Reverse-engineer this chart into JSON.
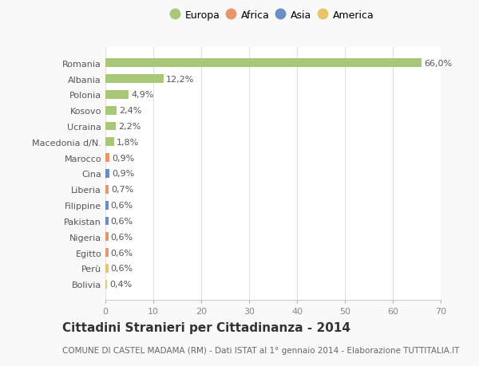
{
  "title": "Cittadini Stranieri per Cittadinanza - 2014",
  "subtitle": "COMUNE DI CASTEL MADAMA (RM) - Dati ISTAT al 1° gennaio 2014 - Elaborazione TUTTITALIA.IT",
  "categories": [
    "Bolivia",
    "Perù",
    "Egitto",
    "Nigeria",
    "Pakistan",
    "Filippine",
    "Liberia",
    "Cina",
    "Marocco",
    "Macedonia d/N.",
    "Ucraina",
    "Kosovo",
    "Polonia",
    "Albania",
    "Romania"
  ],
  "values": [
    0.4,
    0.6,
    0.6,
    0.6,
    0.6,
    0.6,
    0.7,
    0.9,
    0.9,
    1.8,
    2.2,
    2.4,
    4.9,
    12.2,
    66.0
  ],
  "labels": [
    "0,4%",
    "0,6%",
    "0,6%",
    "0,6%",
    "0,6%",
    "0,6%",
    "0,7%",
    "0,9%",
    "0,9%",
    "1,8%",
    "2,2%",
    "2,4%",
    "4,9%",
    "12,2%",
    "66,0%"
  ],
  "colors": [
    "#e8c46a",
    "#e8c46a",
    "#e8956a",
    "#e8956a",
    "#6b8fc4",
    "#6b8fc4",
    "#e8956a",
    "#6b8fc4",
    "#e8956a",
    "#a8c878",
    "#a8c878",
    "#a8c878",
    "#a8c878",
    "#a8c878",
    "#a8c878"
  ],
  "legend": [
    {
      "label": "Europa",
      "color": "#a8c878"
    },
    {
      "label": "Africa",
      "color": "#e8956a"
    },
    {
      "label": "Asia",
      "color": "#6b8fc4"
    },
    {
      "label": "America",
      "color": "#e8c46a"
    }
  ],
  "xlim": [
    0,
    70
  ],
  "xticks": [
    0,
    10,
    20,
    30,
    40,
    50,
    60,
    70
  ],
  "bg_color": "#f9f9f9",
  "bar_height": 0.55,
  "label_fontsize": 8,
  "tick_fontsize": 8,
  "title_fontsize": 11,
  "subtitle_fontsize": 7.5
}
